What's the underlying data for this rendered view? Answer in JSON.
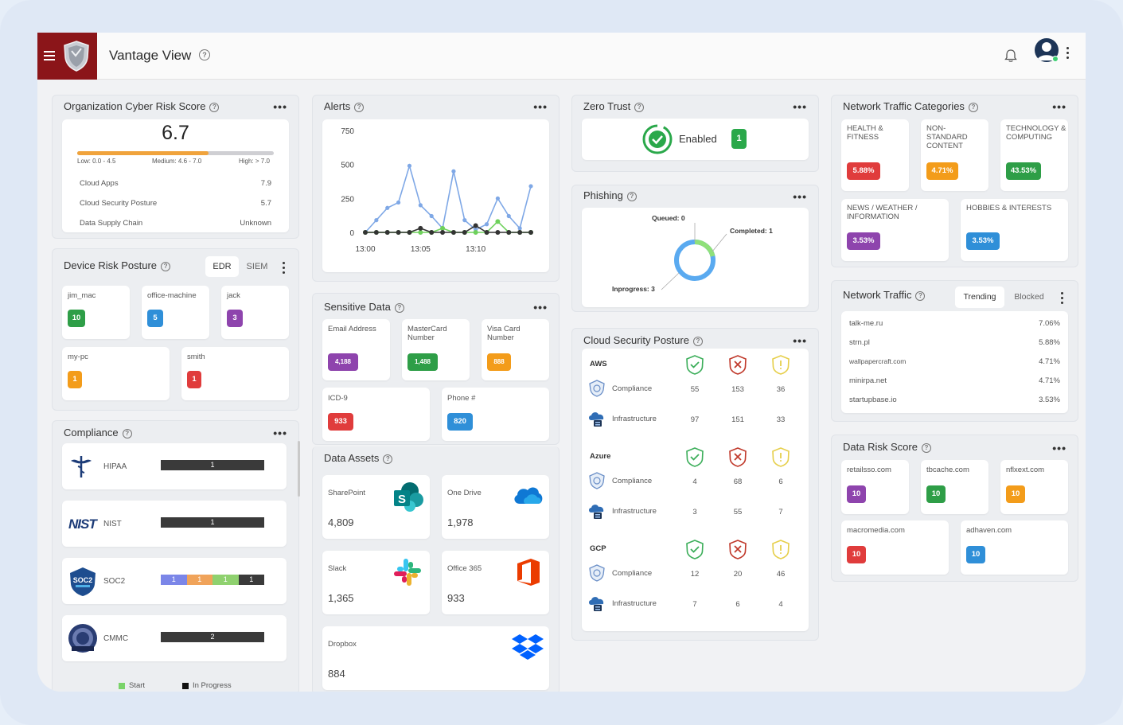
{
  "app": {
    "title": "Vantage View"
  },
  "risk_score": {
    "title": "Organization Cyber Risk Score",
    "score": "6.7",
    "low": "Low: 0.0 - 4.5",
    "medium": "Medium: 4.6 - 7.0",
    "high": "High: > 7.0",
    "rows": [
      {
        "label": "Cloud Apps",
        "value": "7.9"
      },
      {
        "label": "Cloud Security Posture",
        "value": "5.7"
      },
      {
        "label": "Data Supply Chain",
        "value": "Unknown"
      }
    ]
  },
  "device_risk": {
    "title": "Device Risk Posture",
    "tabs": [
      "EDR",
      "SIEM"
    ],
    "devices": [
      {
        "name": "jim_mac",
        "value": "10",
        "color": "#2e9e47"
      },
      {
        "name": "office-machine",
        "value": "5",
        "color": "#2f8fd8"
      },
      {
        "name": "jack",
        "value": "3",
        "color": "#8e44ad"
      },
      {
        "name": "my-pc",
        "value": "1",
        "color": "#f39c1a"
      },
      {
        "name": "smith",
        "value": "1",
        "color": "#e03c3c"
      }
    ]
  },
  "compliance": {
    "title": "Compliance",
    "items": [
      {
        "name": "HIPAA",
        "bar": "1"
      },
      {
        "name": "NIST",
        "bar": "1"
      },
      {
        "name": "SOC2",
        "segments": [
          "1",
          "1",
          "1",
          "1"
        ]
      },
      {
        "name": "CMMC",
        "bar": "2"
      }
    ],
    "legend": [
      "Start",
      "In Progress"
    ]
  },
  "alerts": {
    "title": "Alerts",
    "chart_data": {
      "type": "line",
      "yticks": [
        "750",
        "500",
        "250",
        "0"
      ],
      "xticks": [
        "13:00",
        "13:05",
        "13:10"
      ],
      "ylim": [
        0,
        750
      ],
      "series": [
        {
          "color": "#7fa8e6",
          "values": [
            0,
            90,
            180,
            220,
            490,
            200,
            120,
            30,
            450,
            90,
            20,
            60,
            250,
            120,
            30,
            340
          ]
        },
        {
          "color": "#6ed15b",
          "values": [
            0,
            0,
            0,
            0,
            0,
            0,
            0,
            30,
            0,
            0,
            0,
            0,
            80,
            0,
            0,
            0
          ]
        },
        {
          "color": "#333333",
          "values": [
            0,
            0,
            0,
            0,
            0,
            30,
            0,
            0,
            0,
            0,
            50,
            0,
            0,
            0,
            0,
            0
          ]
        }
      ]
    }
  },
  "sensitive": {
    "title": "Sensitive Data",
    "items": [
      {
        "name": "Email Address",
        "value": "4,188",
        "color": "#8e44ad"
      },
      {
        "name": "MasterCard Number",
        "value": "1,488",
        "color": "#2e9e47"
      },
      {
        "name": "Visa Card Number",
        "value": "888",
        "color": "#f39c1a"
      },
      {
        "name": "ICD-9",
        "value": "933",
        "color": "#e03c3c"
      },
      {
        "name": "Phone #",
        "value": "820",
        "color": "#2f8fd8"
      }
    ]
  },
  "assets": {
    "title": "Data Assets",
    "items": [
      {
        "name": "SharePoint",
        "value": "4,809",
        "icon": "sharepoint-icon"
      },
      {
        "name": "One Drive",
        "value": "1,978",
        "icon": "onedrive-icon"
      },
      {
        "name": "Slack",
        "value": "1,365",
        "icon": "slack-icon"
      },
      {
        "name": "Office 365",
        "value": "933",
        "icon": "office-icon"
      },
      {
        "name": "Dropbox",
        "value": "884",
        "icon": "dropbox-icon"
      }
    ]
  },
  "zero_trust": {
    "title": "Zero Trust",
    "status": "Enabled",
    "count": "1"
  },
  "phishing": {
    "title": "Phishing",
    "queued": "Queued: 0",
    "completed": "Completed: 1",
    "inprogress": "Inprogress: 3"
  },
  "csp": {
    "title": "Cloud Security Posture",
    "providers": [
      {
        "name": "AWS",
        "rows": [
          {
            "label": "Compliance",
            "vals": [
              "55",
              "153",
              "36"
            ]
          },
          {
            "label": "Infrastructure",
            "vals": [
              "97",
              "151",
              "33"
            ]
          }
        ]
      },
      {
        "name": "Azure",
        "rows": [
          {
            "label": "Compliance",
            "vals": [
              "4",
              "68",
              "6"
            ]
          },
          {
            "label": "Infrastructure",
            "vals": [
              "3",
              "55",
              "7"
            ]
          }
        ]
      },
      {
        "name": "GCP",
        "rows": [
          {
            "label": "Compliance",
            "vals": [
              "12",
              "20",
              "46"
            ]
          },
          {
            "label": "Infrastructure",
            "vals": [
              "7",
              "6",
              "4"
            ]
          }
        ]
      }
    ]
  },
  "ntc": {
    "title": "Network Traffic Categories",
    "items": [
      {
        "name": "HEALTH & FITNESS",
        "value": "5.88%",
        "color": "#e03c3c"
      },
      {
        "name": "NON-STANDARD CONTENT",
        "value": "4.71%",
        "color": "#f39c1a"
      },
      {
        "name": "TECHNOLOGY & COMPUTING",
        "value": "43.53%",
        "color": "#2e9e47"
      },
      {
        "name": "NEWS / WEATHER / INFORMATION",
        "value": "3.53%",
        "color": "#8e44ad"
      },
      {
        "name": "HOBBIES & INTERESTS",
        "value": "3.53%",
        "color": "#2f8fd8"
      }
    ]
  },
  "nt": {
    "title": "Network Traffic",
    "tabs": [
      "Trending",
      "Blocked"
    ],
    "rows": [
      {
        "host": "talk-me.ru",
        "pct": "7.06%"
      },
      {
        "host": "strn.pl",
        "pct": "5.88%"
      },
      {
        "host": "wallpapercraft.com",
        "pct": "4.71%"
      },
      {
        "host": "minirpa.net",
        "pct": "4.71%"
      },
      {
        "host": "startupbase.io",
        "pct": "3.53%"
      }
    ]
  },
  "drs": {
    "title": "Data Risk Score",
    "items": [
      {
        "name": "retailsso.com",
        "value": "10",
        "color": "#8e44ad"
      },
      {
        "name": "tbcache.com",
        "value": "10",
        "color": "#2e9e47"
      },
      {
        "name": "nflxext.com",
        "value": "10",
        "color": "#f39c1a"
      },
      {
        "name": "macromedia.com",
        "value": "10",
        "color": "#e03c3c"
      },
      {
        "name": "adhaven.com",
        "value": "10",
        "color": "#2f8fd8"
      }
    ]
  }
}
